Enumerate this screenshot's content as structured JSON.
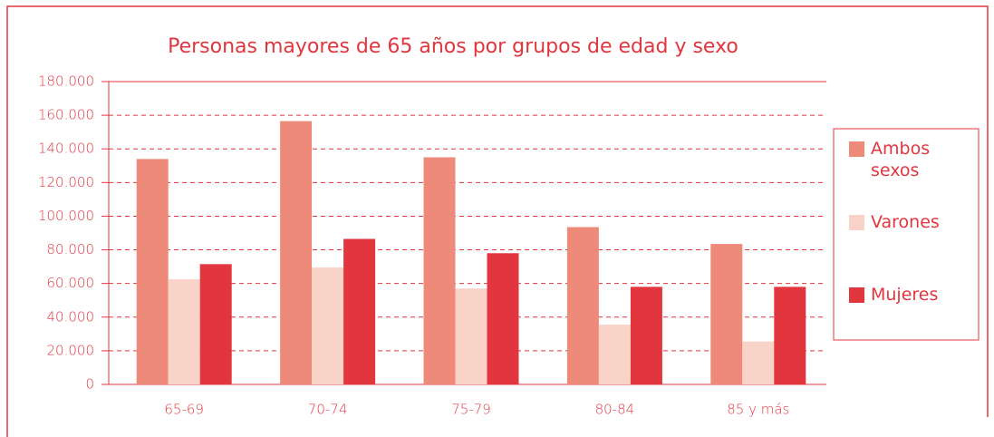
{
  "chart_data": {
    "type": "bar",
    "title": "Personas mayores de 65 años por grupos de edad y sexo",
    "categories": [
      "65-69",
      "70-74",
      "75-79",
      "80-84",
      "85 y más"
    ],
    "series": [
      {
        "name": "Ambos sexos",
        "color": "#ee8a7a",
        "values": [
          134000,
          156500,
          135000,
          93500,
          83500
        ]
      },
      {
        "name": "Varones",
        "color": "#f9d3c8",
        "values": [
          62500,
          69500,
          57000,
          35500,
          25500
        ]
      },
      {
        "name": "Mujeres",
        "color": "#e2363f",
        "values": [
          71500,
          86500,
          78000,
          58000,
          58000
        ]
      }
    ],
    "ylim": [
      0,
      180000
    ],
    "yticks": [
      0,
      {
        "value": 20000,
        "label": "20.000"
      },
      {
        "value": 40000,
        "label": "40.000"
      },
      {
        "value": 60000,
        "label": "60.000"
      },
      {
        "value": 80000,
        "label": "80.000"
      },
      {
        "value": 100000,
        "label": "100.000"
      },
      {
        "value": 120000,
        "label": "120.000"
      },
      {
        "value": 140000,
        "label": "140.000"
      },
      {
        "value": 160000,
        "label": "160.000"
      },
      {
        "value": 180000,
        "label": "180.000"
      }
    ],
    "grid": true,
    "legend": "right"
  }
}
